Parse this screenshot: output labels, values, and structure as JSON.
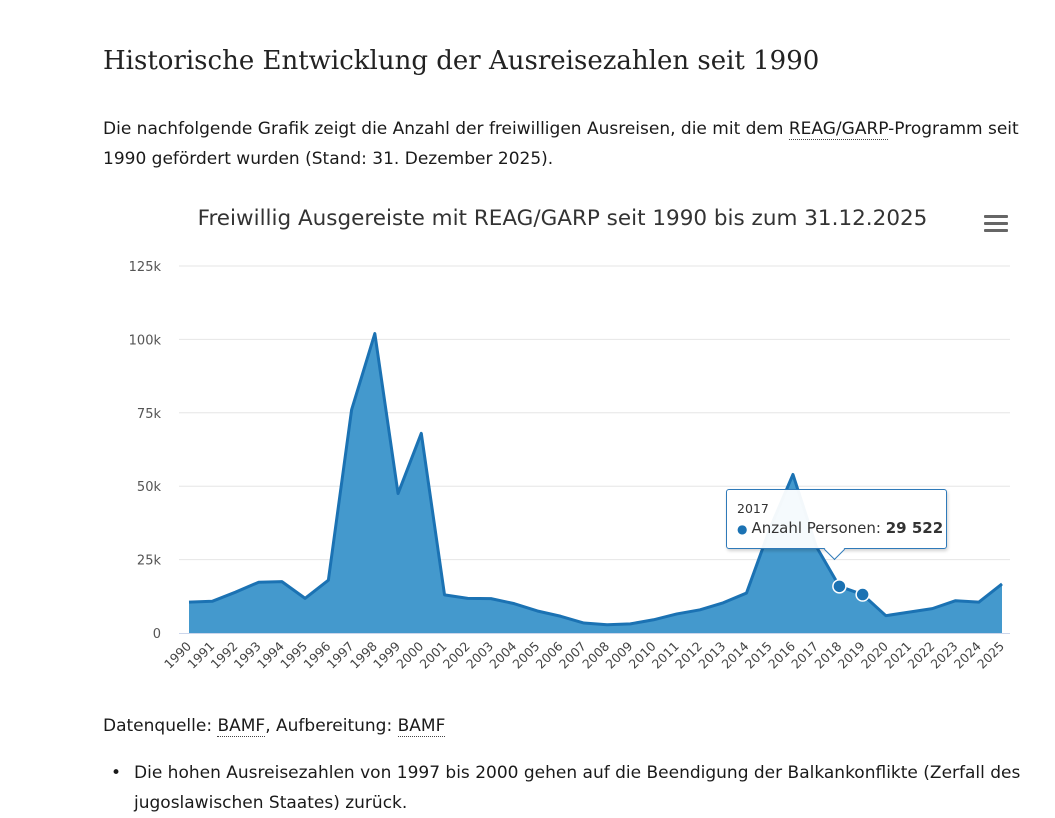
{
  "page": {
    "heading": "Historische Entwicklung der Ausreisezahlen seit 1990",
    "intro_part1": "Die nachfolgende Grafik zeigt die Anzahl der freiwilligen Ausreisen, die mit dem ",
    "intro_abbr": "REAG/GARP",
    "intro_part2": "-Programm seit 1990 gefördert wurden (Stand: 31. Dezember 2025).",
    "source_label": "Datenquelle: ",
    "source_link": "BAMF",
    "source_mid": ", Aufbereitung: ",
    "source_link2": "BAMF",
    "notes": [
      "Die hohen Ausreisezahlen von 1997 bis 2000 gehen auf die Beendigung der Balkankonflikte (Zerfall des jugoslawischen Staates) zurück."
    ]
  },
  "chart_data": {
    "type": "area",
    "title": "Freiwillig Ausgereiste mit REAG/GARP seit 1990 bis zum 31.12.2025",
    "categories": [
      "1990",
      "1991",
      "1992",
      "1993",
      "1994",
      "1995",
      "1996",
      "1997",
      "1998",
      "1999",
      "2000",
      "2001",
      "2002",
      "2003",
      "2004",
      "2005",
      "2006",
      "2007",
      "2008",
      "2009",
      "2010",
      "2011",
      "2012",
      "2013",
      "2014",
      "2015",
      "2016",
      "2017",
      "2018",
      "2019",
      "2020",
      "2021",
      "2022",
      "2023",
      "2024",
      "2025"
    ],
    "series": [
      {
        "name": "Anzahl Personen",
        "values": [
          10500,
          10800,
          13900,
          17300,
          17500,
          11800,
          18000,
          76000,
          102000,
          47500,
          68000,
          13000,
          11800,
          11700,
          10000,
          7500,
          5700,
          3400,
          2800,
          3100,
          4500,
          6500,
          7900,
          10300,
          13600,
          35400,
          54000,
          29522,
          15900,
          13100,
          5900,
          7100,
          8300,
          11000,
          10500,
          16700
        ]
      }
    ],
    "yticks": [
      "0",
      "25k",
      "50k",
      "75k",
      "100k",
      "125k"
    ],
    "ylim": [
      0,
      125000
    ],
    "xlabel": "",
    "ylabel": "",
    "colors": {
      "fill": "#4499cd",
      "line": "#1b72b3",
      "grid": "#e6e6e6",
      "axis": "#ccd6eb"
    },
    "tooltip": {
      "year": "2017",
      "series_label": "Anzahl Personen: ",
      "value": "29 522"
    }
  }
}
